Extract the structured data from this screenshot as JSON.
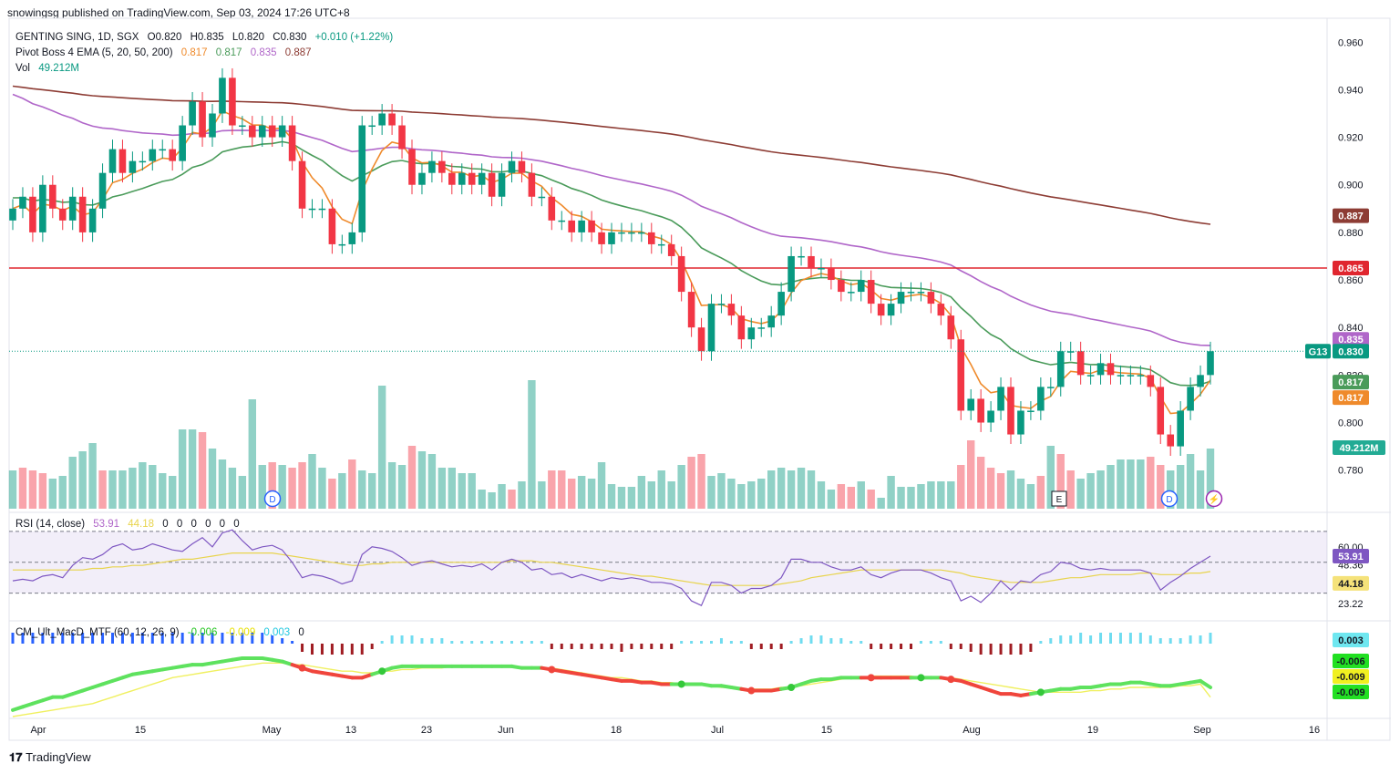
{
  "header": {
    "published": "snowingsg published on TradingView.com, Sep 03, 2024 17:26 UTC+8"
  },
  "legend": {
    "symbol": "GENTING SING, 1D, SGX",
    "ohlc": {
      "o": "O0.820",
      "h": "H0.835",
      "l": "L0.820",
      "c": "C0.830",
      "chg": "+0.010 (+1.22%)"
    },
    "ema_title": "Pivot Boss 4 EMA (5, 20, 50, 200)",
    "ema_values": [
      "0.817",
      "0.817",
      "0.835",
      "0.887"
    ],
    "vol_title": "Vol",
    "vol_value": "49.212M",
    "rsi_title": "RSI (14, close)",
    "rsi_values": [
      "53.91",
      "44.18",
      "0",
      "0",
      "0",
      "0",
      "0",
      "0"
    ],
    "macd_title": "CM_Ult_MacD_MTF (60, 12, 26, 9)",
    "macd_values": [
      "-0.006",
      "-0.009",
      "0.003",
      "0"
    ]
  },
  "footer": {
    "brand": "TradingView"
  },
  "colors": {
    "up": "#089981",
    "down": "#f23645",
    "ema5": "#ef8a2b",
    "ema20": "#4a9b5a",
    "ema50": "#b066c9",
    "ema200": "#8d3c34",
    "hline": "#e0262f"
  },
  "chart_data": [
    {
      "type": "candlestick",
      "title": "GENTING SING, 1D, SGX",
      "x_ticks": [
        "Apr",
        "15",
        "May",
        "13",
        "23",
        "Jun",
        "18",
        "Jul",
        "15",
        "Aug",
        "19",
        "Sep",
        "16"
      ],
      "y_ticks": [
        "0.960",
        "0.940",
        "0.920",
        "0.900",
        "0.880",
        "0.860",
        "0.840",
        "0.820",
        "0.800",
        "0.780"
      ],
      "ylim": [
        0.763,
        0.967
      ],
      "horizontal_line": 0.865,
      "price_labels": [
        {
          "text": "0.887",
          "value": 0.887,
          "color": "#8d3c34"
        },
        {
          "text": "0.865",
          "value": 0.865,
          "color": "#e0262f"
        },
        {
          "text": "0.835",
          "value": 0.835,
          "color": "#b066c9"
        },
        {
          "text": "G13",
          "value": 0.83,
          "color": "#089981"
        },
        {
          "text": "0.830",
          "value": 0.83,
          "color": "#089981"
        },
        {
          "text": "0.817",
          "value": 0.817,
          "color": "#4a9b5a"
        },
        {
          "text": "0.817",
          "value": 0.817,
          "color": "#ef8a2b"
        },
        {
          "text": "49.212M",
          "value": null,
          "color": "#22ab94"
        }
      ],
      "markers": [
        "D",
        "E",
        "D",
        "⚡"
      ],
      "close": [
        0.89,
        0.895,
        0.88,
        0.9,
        0.89,
        0.885,
        0.895,
        0.88,
        0.89,
        0.905,
        0.915,
        0.905,
        0.91,
        0.91,
        0.915,
        0.915,
        0.91,
        0.925,
        0.935,
        0.92,
        0.93,
        0.945,
        0.925,
        0.925,
        0.92,
        0.925,
        0.92,
        0.925,
        0.91,
        0.89,
        0.89,
        0.89,
        0.875,
        0.875,
        0.88,
        0.925,
        0.925,
        0.93,
        0.925,
        0.915,
        0.9,
        0.905,
        0.91,
        0.905,
        0.9,
        0.905,
        0.9,
        0.905,
        0.895,
        0.905,
        0.91,
        0.905,
        0.895,
        0.895,
        0.885,
        0.885,
        0.88,
        0.885,
        0.88,
        0.875,
        0.88,
        0.88,
        0.88,
        0.88,
        0.875,
        0.875,
        0.87,
        0.855,
        0.84,
        0.83,
        0.85,
        0.85,
        0.845,
        0.835,
        0.84,
        0.84,
        0.845,
        0.855,
        0.87,
        0.87,
        0.865,
        0.865,
        0.86,
        0.855,
        0.855,
        0.86,
        0.85,
        0.845,
        0.85,
        0.855,
        0.855,
        0.855,
        0.85,
        0.845,
        0.835,
        0.805,
        0.81,
        0.8,
        0.805,
        0.815,
        0.795,
        0.805,
        0.805,
        0.815,
        0.815,
        0.83,
        0.83,
        0.82,
        0.82,
        0.825,
        0.82,
        0.82,
        0.82,
        0.82,
        0.815,
        0.795,
        0.79,
        0.805,
        0.815,
        0.82,
        0.83
      ],
      "volume": [
        [
          "up",
          14
        ],
        [
          "down",
          15
        ],
        [
          "down",
          14
        ],
        [
          "down",
          13
        ],
        [
          "up",
          11
        ],
        [
          "up",
          12
        ],
        [
          "up",
          19
        ],
        [
          "up",
          21
        ],
        [
          "up",
          24
        ],
        [
          "down",
          14
        ],
        [
          "up",
          14
        ],
        [
          "up",
          14
        ],
        [
          "up",
          15
        ],
        [
          "up",
          17
        ],
        [
          "up",
          16
        ],
        [
          "up",
          13
        ],
        [
          "up",
          12
        ],
        [
          "up",
          29
        ],
        [
          "up",
          29
        ],
        [
          "down",
          28
        ],
        [
          "up",
          22
        ],
        [
          "up",
          18
        ],
        [
          "up",
          15
        ],
        [
          "up",
          12
        ],
        [
          "up",
          40
        ],
        [
          "up",
          16
        ],
        [
          "down",
          17
        ],
        [
          "up",
          16
        ],
        [
          "down",
          15
        ],
        [
          "down",
          17
        ],
        [
          "up",
          20
        ],
        [
          "up",
          15
        ],
        [
          "down",
          11
        ],
        [
          "up",
          13
        ],
        [
          "down",
          18
        ],
        [
          "up",
          14
        ],
        [
          "up",
          13
        ],
        [
          "up",
          45
        ],
        [
          "up",
          17
        ],
        [
          "up",
          16
        ],
        [
          "down",
          23
        ],
        [
          "up",
          21
        ],
        [
          "up",
          20
        ],
        [
          "up",
          15
        ],
        [
          "up",
          15
        ],
        [
          "up",
          13
        ],
        [
          "up",
          13
        ],
        [
          "up",
          7
        ],
        [
          "up",
          6
        ],
        [
          "up",
          9
        ],
        [
          "down",
          7
        ],
        [
          "up",
          10
        ],
        [
          "up",
          47
        ],
        [
          "up",
          10
        ],
        [
          "down",
          14
        ],
        [
          "down",
          14
        ],
        [
          "down",
          11
        ],
        [
          "up",
          12
        ],
        [
          "up",
          11
        ],
        [
          "up",
          17
        ],
        [
          "up",
          9
        ],
        [
          "up",
          8
        ],
        [
          "up",
          8
        ],
        [
          "up",
          12
        ],
        [
          "up",
          10
        ],
        [
          "up",
          14
        ],
        [
          "up",
          10
        ],
        [
          "up",
          16
        ],
        [
          "down",
          19
        ],
        [
          "down",
          20
        ],
        [
          "up",
          12
        ],
        [
          "up",
          13
        ],
        [
          "up",
          11
        ],
        [
          "up",
          9
        ],
        [
          "up",
          10
        ],
        [
          "up",
          11
        ],
        [
          "up",
          14
        ],
        [
          "up",
          15
        ],
        [
          "up",
          14
        ],
        [
          "up",
          15
        ],
        [
          "up",
          14
        ],
        [
          "up",
          10
        ],
        [
          "up",
          7
        ],
        [
          "down",
          9
        ],
        [
          "down",
          8
        ],
        [
          "up",
          10
        ],
        [
          "down",
          7
        ],
        [
          "up",
          4
        ],
        [
          "up",
          12
        ],
        [
          "up",
          8
        ],
        [
          "up",
          8
        ],
        [
          "up",
          9
        ],
        [
          "up",
          10
        ],
        [
          "up",
          10
        ],
        [
          "up",
          10
        ],
        [
          "down",
          16
        ],
        [
          "down",
          25
        ],
        [
          "down",
          19
        ],
        [
          "down",
          15
        ],
        [
          "down",
          13
        ],
        [
          "up",
          14
        ],
        [
          "up",
          11
        ],
        [
          "up",
          9
        ],
        [
          "down",
          12
        ],
        [
          "up",
          23
        ],
        [
          "down",
          20
        ],
        [
          "down",
          14
        ],
        [
          "up",
          11
        ],
        [
          "up",
          13
        ],
        [
          "up",
          14
        ],
        [
          "up",
          16
        ],
        [
          "up",
          18
        ],
        [
          "up",
          18
        ],
        [
          "up",
          18
        ],
        [
          "down",
          19
        ],
        [
          "down",
          16
        ],
        [
          "up",
          14
        ],
        [
          "up",
          16
        ],
        [
          "up",
          20
        ],
        [
          "up",
          14
        ],
        [
          "up",
          22
        ]
      ]
    },
    {
      "type": "line",
      "title": "RSI (14, close)",
      "y_ticks": [
        "60.00",
        "48.36",
        "23.22"
      ],
      "ylim": [
        15,
        80
      ],
      "series": [
        {
          "name": "RSI",
          "values": [
            38,
            39,
            38,
            41,
            42,
            40,
            48,
            53,
            52,
            55,
            60,
            62,
            58,
            59,
            62,
            60,
            58,
            57,
            62,
            66,
            60,
            69,
            71,
            64,
            58,
            60,
            61,
            58,
            50,
            40,
            42,
            41,
            39,
            36,
            38,
            55,
            60,
            59,
            57,
            53,
            48,
            50,
            51,
            49,
            47,
            48,
            47,
            49,
            45,
            50,
            52,
            50,
            45,
            46,
            42,
            43,
            40,
            42,
            40,
            38,
            40,
            39,
            40,
            39,
            37,
            37,
            36,
            33,
            25,
            22,
            37,
            37,
            35,
            30,
            33,
            33,
            35,
            40,
            52,
            52,
            50,
            50,
            47,
            45,
            45,
            47,
            42,
            40,
            43,
            45,
            45,
            45,
            43,
            40,
            38,
            25,
            28,
            24,
            30,
            38,
            32,
            38,
            37,
            42,
            44,
            50,
            49,
            46,
            45,
            46,
            45,
            45,
            45,
            45,
            43,
            32,
            37,
            41,
            46,
            50,
            54
          ]
        },
        {
          "name": "MA",
          "values": [
            45,
            45,
            45,
            45,
            45,
            45,
            45,
            45,
            46,
            46,
            47,
            47,
            48,
            48,
            49,
            50,
            51,
            52,
            52,
            53,
            54,
            55,
            56,
            56,
            56,
            56,
            56,
            55,
            54,
            53,
            52,
            51,
            50,
            49,
            48,
            48,
            49,
            49,
            50,
            50,
            50,
            50,
            50,
            50,
            50,
            50,
            50,
            50,
            50,
            50,
            51,
            51,
            51,
            50,
            50,
            49,
            48,
            47,
            46,
            45,
            44,
            43,
            42,
            41,
            41,
            40,
            39,
            38,
            37,
            36,
            35,
            35,
            35,
            35,
            35,
            35,
            35,
            36,
            37,
            38,
            40,
            41,
            42,
            43,
            44,
            45,
            45,
            45,
            45,
            45,
            45,
            45,
            45,
            45,
            44,
            43,
            41,
            40,
            39,
            38,
            37,
            37,
            37,
            37,
            38,
            39,
            40,
            40,
            41,
            42,
            42,
            42,
            42,
            43,
            43,
            42,
            42,
            42,
            43,
            43,
            44
          ]
        }
      ]
    },
    {
      "type": "line",
      "title": "CM_Ult_MacD_MTF (60, 12, 26, 9)",
      "y_ticks": [
        "0.003",
        "-0.006",
        "-0.009",
        "-0.009"
      ],
      "ylim": [
        -0.015,
        0.012
      ],
      "series": [
        {
          "name": "MACD",
          "values": [
            -0.013,
            -0.012,
            -0.011,
            -0.01,
            -0.009,
            -0.009,
            -0.008,
            -0.007,
            -0.006,
            -0.005,
            -0.004,
            -0.003,
            -0.002,
            -0.0015,
            -0.001,
            -0.0005,
            0.0,
            0.0005,
            0.001,
            0.001,
            0.0015,
            0.002,
            0.0025,
            0.003,
            0.003,
            0.003,
            0.0025,
            0.002,
            0.001,
            0.0,
            -0.001,
            -0.0015,
            -0.002,
            -0.0025,
            -0.003,
            -0.003,
            -0.002,
            -0.001,
            0.0,
            0.0005,
            0.0005,
            0.0005,
            0.0005,
            0.0005,
            0.0005,
            0.0005,
            0.0005,
            0.0005,
            0.0005,
            0.0005,
            0.0005,
            0.0,
            0.0,
            0.0,
            -0.0005,
            -0.001,
            -0.0015,
            -0.002,
            -0.0025,
            -0.003,
            -0.0035,
            -0.004,
            -0.004,
            -0.0045,
            -0.0045,
            -0.005,
            -0.005,
            -0.005,
            -0.005,
            -0.005,
            -0.0055,
            -0.0055,
            -0.006,
            -0.0065,
            -0.007,
            -0.007,
            -0.007,
            -0.0065,
            -0.006,
            -0.005,
            -0.004,
            -0.0035,
            -0.0035,
            -0.003,
            -0.003,
            -0.003,
            -0.003,
            -0.003,
            -0.003,
            -0.003,
            -0.003,
            -0.003,
            -0.003,
            -0.003,
            -0.0035,
            -0.004,
            -0.005,
            -0.006,
            -0.007,
            -0.008,
            -0.008,
            -0.0085,
            -0.008,
            -0.0075,
            -0.007,
            -0.0065,
            -0.0065,
            -0.006,
            -0.006,
            -0.0055,
            -0.005,
            -0.005,
            -0.0045,
            -0.0045,
            -0.005,
            -0.0055,
            -0.0055,
            -0.005,
            -0.0045,
            -0.004,
            -0.006
          ]
        },
        {
          "name": "Signal",
          "values": [
            -0.015,
            -0.0145,
            -0.014,
            -0.0135,
            -0.013,
            -0.0125,
            -0.012,
            -0.0115,
            -0.011,
            -0.01,
            -0.009,
            -0.008,
            -0.007,
            -0.006,
            -0.005,
            -0.004,
            -0.003,
            -0.0025,
            -0.002,
            -0.0015,
            -0.001,
            -0.0005,
            0.0,
            0.0005,
            0.001,
            0.0015,
            0.0015,
            0.0015,
            0.001,
            0.001,
            0.0005,
            0.0,
            -0.0005,
            -0.001,
            -0.001,
            -0.0015,
            -0.0015,
            -0.001,
            -0.001,
            -0.0005,
            -0.0005,
            0.0,
            0.0,
            0.0,
            0.0005,
            0.0005,
            0.0005,
            0.0005,
            0.0005,
            0.0005,
            0.0005,
            0.0,
            0.0,
            0.0,
            0.0,
            -0.0005,
            -0.001,
            -0.0015,
            -0.002,
            -0.0025,
            -0.003,
            -0.003,
            -0.0035,
            -0.004,
            -0.004,
            -0.0045,
            -0.0045,
            -0.005,
            -0.005,
            -0.005,
            -0.0055,
            -0.006,
            -0.006,
            -0.0065,
            -0.0065,
            -0.0065,
            -0.0065,
            -0.006,
            -0.006,
            -0.0055,
            -0.005,
            -0.0045,
            -0.004,
            -0.0035,
            -0.003,
            -0.003,
            -0.0025,
            -0.0025,
            -0.0025,
            -0.0025,
            -0.0025,
            -0.003,
            -0.003,
            -0.003,
            -0.003,
            -0.0035,
            -0.004,
            -0.0045,
            -0.005,
            -0.0055,
            -0.006,
            -0.0065,
            -0.007,
            -0.0075,
            -0.0075,
            -0.0075,
            -0.0075,
            -0.0075,
            -0.007,
            -0.007,
            -0.0065,
            -0.0065,
            -0.006,
            -0.006,
            -0.006,
            -0.006,
            -0.006,
            -0.0055,
            -0.0055,
            -0.005,
            -0.009
          ]
        }
      ]
    }
  ]
}
